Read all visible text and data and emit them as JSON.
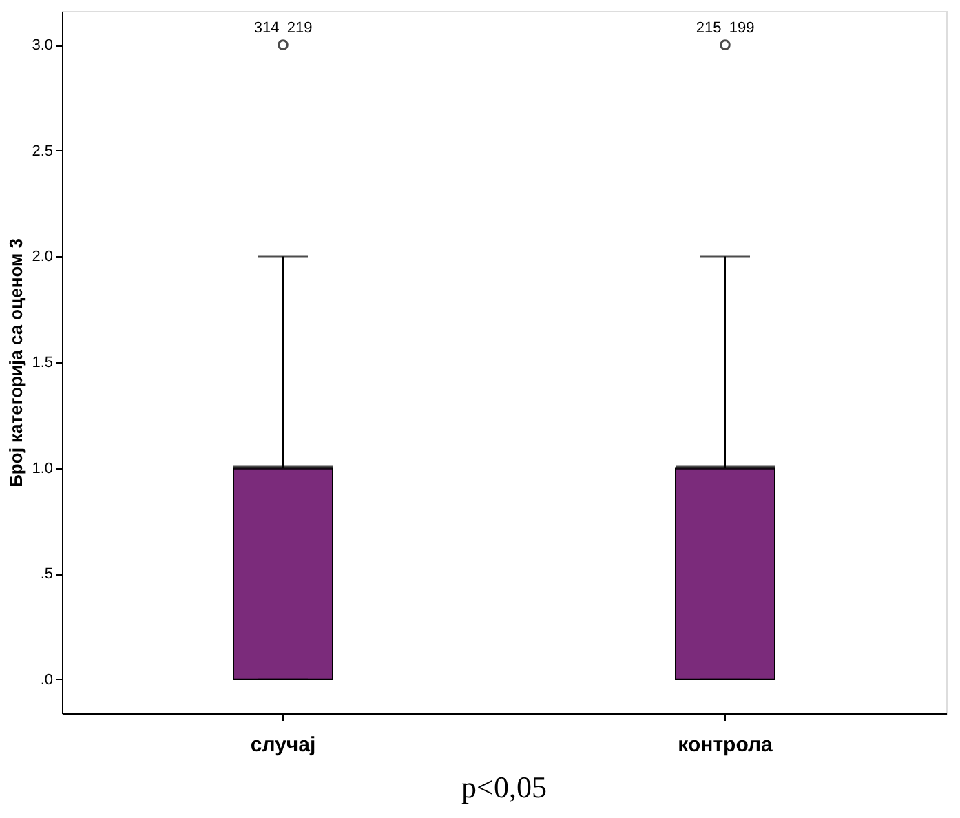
{
  "chart_data": {
    "type": "box",
    "ylabel": "Број категорија са оценом 3",
    "categories": [
      "случај",
      "контрола"
    ],
    "color": "#7b2b7b",
    "boxes": [
      {
        "low": 0,
        "q1": 0,
        "median": 1,
        "q3": 1,
        "high": 2,
        "outliers": [
          3
        ]
      },
      {
        "low": 0,
        "q1": 0,
        "median": 1,
        "q3": 1,
        "high": 2,
        "outliers": [
          3
        ]
      }
    ],
    "ylim": [
      -0.16,
      3.16
    ],
    "yticks": [
      {
        "value": 0,
        "label": ".0"
      },
      {
        "value": 0.5,
        "label": ".5"
      },
      {
        "value": 1,
        "label": "1.0"
      },
      {
        "value": 1.5,
        "label": "1.5"
      },
      {
        "value": 2,
        "label": "2.0"
      },
      {
        "value": 2.5,
        "label": "2.5"
      },
      {
        "value": 3,
        "label": "3.0"
      }
    ],
    "grid": false,
    "annotations": [
      "314",
      "219",
      "215",
      "199",
      "p<0,05"
    ]
  }
}
